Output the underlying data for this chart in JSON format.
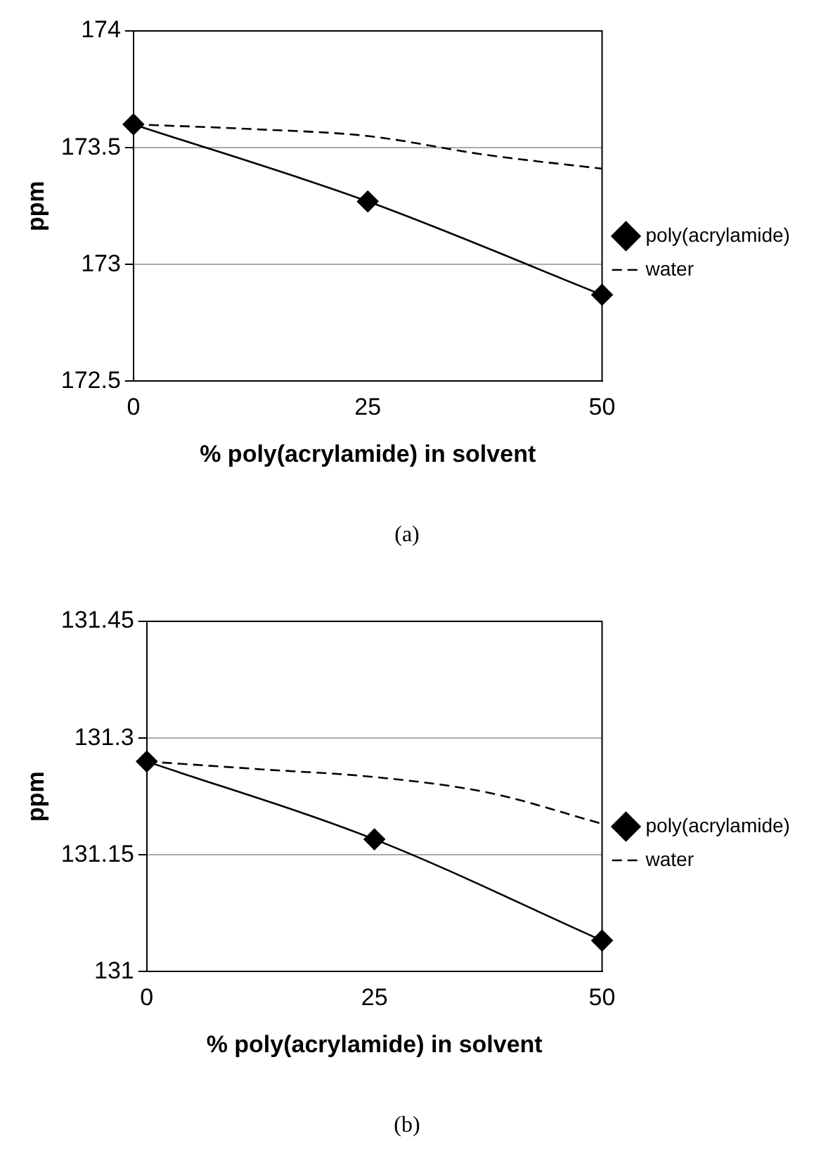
{
  "chart_data": [
    {
      "type": "line",
      "xlabel": "% poly(acrylamide) in solvent",
      "ylabel": "ppm",
      "xlim": [
        0,
        50
      ],
      "xticks": [
        0,
        25,
        50
      ],
      "ylim": [
        172.5,
        174
      ],
      "yticks": [
        172.5,
        173,
        173.5,
        174
      ],
      "grid": "y",
      "legend": "right",
      "annotations": [
        "(a)"
      ],
      "series": [
        {
          "name": "poly(acrylamide)",
          "color": "#000000",
          "x": [
            0,
            25,
            50
          ],
          "values": [
            173.6,
            173.27,
            172.87
          ],
          "marker": "diamond",
          "line_style": "solid"
        },
        {
          "name": "water",
          "color": "#000000",
          "x": [
            0,
            12.5,
            25,
            37.5,
            50
          ],
          "values": [
            173.6,
            173.58,
            173.55,
            173.47,
            173.41
          ],
          "marker": "none",
          "line_style": "dashed"
        }
      ]
    },
    {
      "type": "line",
      "xlabel": "% poly(acrylamide) in solvent",
      "ylabel": "ppm",
      "xlim": [
        0,
        50
      ],
      "xticks": [
        0,
        25,
        50
      ],
      "ylim": [
        131,
        131.45
      ],
      "yticks": [
        131,
        131.15,
        131.3,
        131.45
      ],
      "grid": "y",
      "legend": "right",
      "annotations": [
        "(b)"
      ],
      "series": [
        {
          "name": "poly(acrylamide)",
          "color": "#000000",
          "x": [
            0,
            25,
            50
          ],
          "values": [
            131.27,
            131.17,
            131.04
          ],
          "marker": "diamond",
          "line_style": "solid"
        },
        {
          "name": "water",
          "color": "#000000",
          "x": [
            0,
            12.5,
            25,
            37.5,
            50
          ],
          "values": [
            131.27,
            131.26,
            131.25,
            131.23,
            131.19
          ],
          "marker": "none",
          "line_style": "dashed"
        }
      ]
    }
  ]
}
